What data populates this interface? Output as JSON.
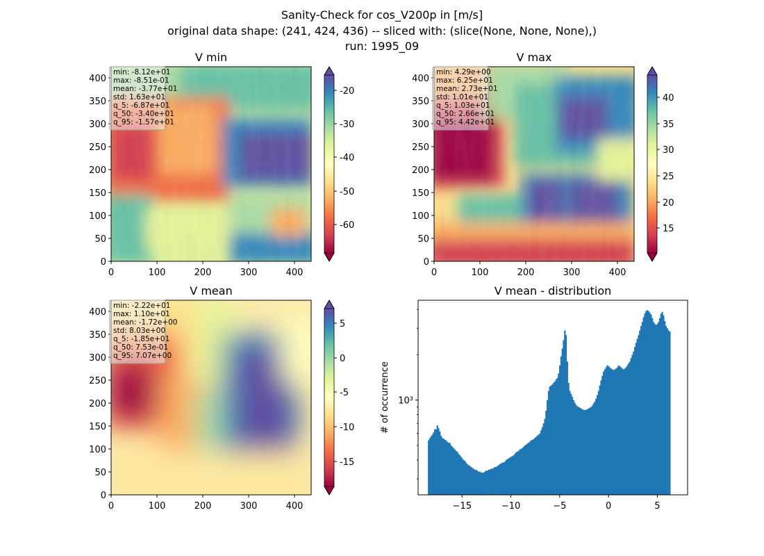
{
  "figure": {
    "title_line1": "Sanity-Check for cos_V200p in [m/s]",
    "title_line2": "original data shape: (241, 424, 436) -- sliced with: (slice(None, None, None),)",
    "title_line3": "run: 1995_09"
  },
  "chart_data": [
    {
      "type": "heatmap",
      "title": "V min",
      "colormap": "Spectral",
      "xlim": [
        0,
        436
      ],
      "ylim": [
        0,
        424
      ],
      "xticks": [
        0,
        100,
        200,
        300,
        400
      ],
      "yticks": [
        0,
        50,
        100,
        150,
        200,
        250,
        300,
        350,
        400
      ],
      "colorbar": {
        "range": [
          -68.7,
          -15.7
        ],
        "ticks": [
          -60,
          -50,
          -40,
          -30,
          -20
        ],
        "extend": "both"
      },
      "stats_box": [
        "min: -8.12e+01",
        "max: -8.51e-01",
        "mean: -3.77e+01",
        "std: 1.63e+01",
        "q_5: -6.87e+01",
        "q_50: -3.40e+01",
        "q_95: -1.57e+01"
      ]
    },
    {
      "type": "heatmap",
      "title": "V max",
      "colormap": "Spectral",
      "xlim": [
        0,
        436
      ],
      "ylim": [
        0,
        424
      ],
      "xticks": [
        0,
        100,
        200,
        300,
        400
      ],
      "yticks": [
        0,
        50,
        100,
        150,
        200,
        250,
        300,
        350,
        400
      ],
      "colorbar": {
        "range": [
          10.3,
          44.2
        ],
        "ticks": [
          15,
          20,
          25,
          30,
          35,
          40
        ],
        "extend": "both"
      },
      "stats_box": [
        "min: 4.29e+00",
        "max: 6.25e+01",
        "mean: 2.73e+01",
        "std: 1.01e+01",
        "q_5: 1.03e+01",
        "q_50: 2.66e+01",
        "q_95: 4.42e+01"
      ]
    },
    {
      "type": "heatmap",
      "title": "V mean",
      "colormap": "Spectral",
      "xlim": [
        0,
        436
      ],
      "ylim": [
        0,
        424
      ],
      "xticks": [
        0,
        100,
        200,
        300,
        400
      ],
      "yticks": [
        0,
        50,
        100,
        150,
        200,
        250,
        300,
        350,
        400
      ],
      "colorbar": {
        "range": [
          -18.5,
          7.07
        ],
        "ticks": [
          -15,
          -10,
          -5,
          0,
          5
        ],
        "extend": "both"
      },
      "stats_box": [
        "min: -2.22e+01",
        "max: 1.10e+01",
        "mean: -1.72e+00",
        "std: 8.03e+00",
        "q_5: -1.85e+01",
        "q_50: 7.53e-01",
        "q_95: 7.07e+00"
      ]
    },
    {
      "type": "bar",
      "title": "V mean - distribution",
      "ylabel": "# of occurrence",
      "yscale": "log",
      "color": "#1f77b4",
      "xlim": [
        -19.5,
        8.1
      ],
      "ylim": [
        235,
        4600
      ],
      "xticks": [
        -15,
        -10,
        -5,
        0,
        5
      ],
      "yticks_major": [
        1000
      ],
      "ytick_label": "10³",
      "bins": {
        "start": -18.5,
        "width": 0.128
      },
      "counts": [
        540,
        560,
        575,
        590,
        610,
        640,
        640,
        680,
        650,
        620,
        580,
        560,
        555,
        545,
        540,
        530,
        520,
        520,
        500,
        490,
        480,
        470,
        460,
        455,
        440,
        430,
        420,
        410,
        400,
        395,
        385,
        375,
        370,
        365,
        360,
        355,
        350,
        345,
        345,
        340,
        335,
        335,
        330,
        330,
        330,
        335,
        340,
        340,
        345,
        345,
        350,
        350,
        355,
        360,
        360,
        365,
        370,
        375,
        380,
        385,
        385,
        390,
        400,
        405,
        410,
        415,
        420,
        425,
        430,
        440,
        450,
        455,
        460,
        470,
        475,
        480,
        490,
        500,
        505,
        515,
        520,
        530,
        540,
        545,
        550,
        560,
        570,
        580,
        590,
        600,
        630,
        660,
        700,
        750,
        850,
        1000,
        1150,
        1230,
        1250,
        1270,
        1300,
        1330,
        1370,
        1400,
        1500,
        1700,
        1950,
        2200,
        2500,
        2900,
        2700,
        1800,
        1300,
        1150,
        1100,
        1050,
        1000,
        960,
        930,
        910,
        900,
        890,
        880,
        870,
        860,
        860,
        860,
        870,
        880,
        890,
        900,
        920,
        950,
        980,
        1020,
        1080,
        1150,
        1250,
        1350,
        1450,
        1550,
        1600,
        1650,
        1700,
        1680,
        1650,
        1620,
        1600,
        1580,
        1600,
        1620,
        1650,
        1700,
        1680,
        1650,
        1620,
        1600,
        1620,
        1650,
        1700,
        1750,
        1800,
        1900,
        2000,
        2100,
        2250,
        2400,
        2550,
        2700,
        2900,
        3100,
        3300,
        3550,
        3750,
        3900,
        3950,
        3900,
        3800,
        3700,
        3500,
        3300,
        3200,
        3150,
        3200,
        3300,
        3500,
        3750,
        3850,
        3650,
        3350,
        3100,
        3000,
        2900,
        2850
      ]
    }
  ]
}
